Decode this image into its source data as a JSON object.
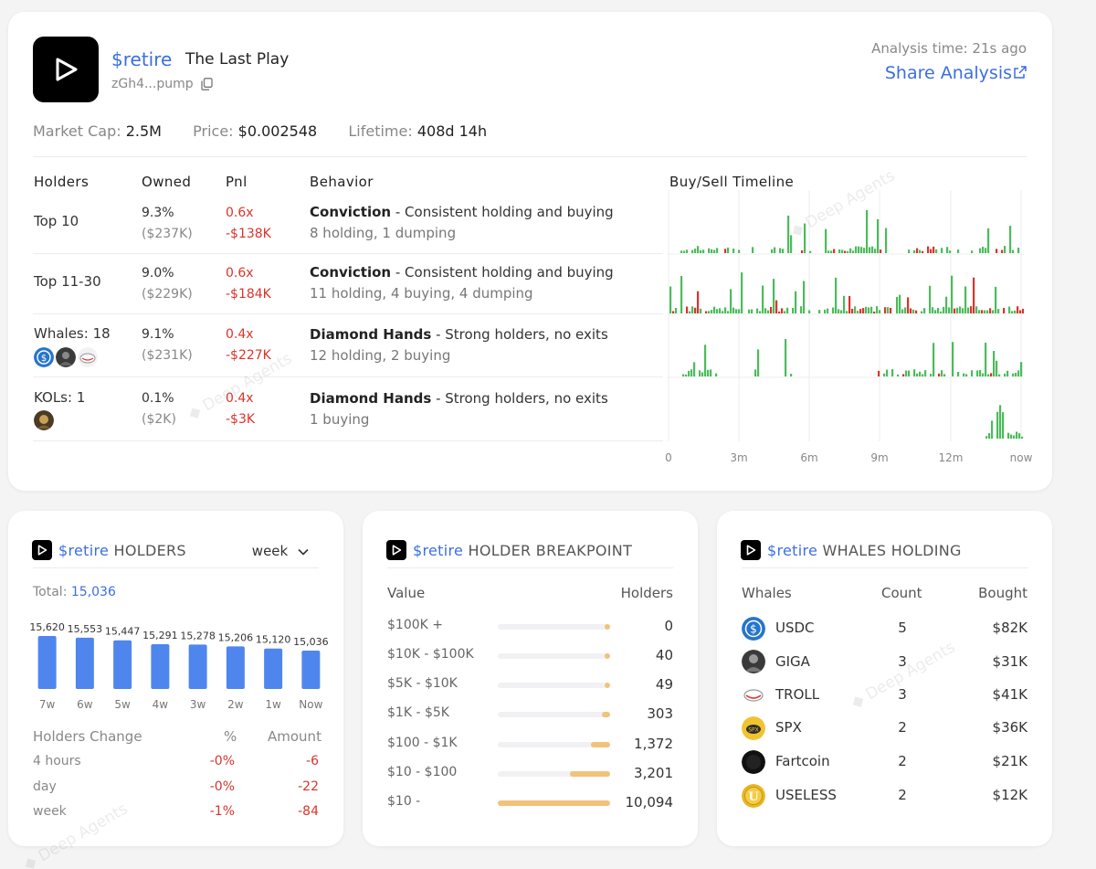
{
  "token": {
    "ticker": "$retire",
    "name": "The Last Play",
    "address": "zGh4...pump"
  },
  "header": {
    "analysis_time": "Analysis time: 21s ago",
    "share_label": "Share Analysis"
  },
  "stats": {
    "market_cap_label": "Market Cap:",
    "market_cap": "2.5M",
    "price_label": "Price:",
    "price": "$0.002548",
    "lifetime_label": "Lifetime:",
    "lifetime": "408d 14h"
  },
  "table": {
    "headers": {
      "holders": "Holders",
      "owned": "Owned",
      "pnl": "Pnl",
      "behavior": "Behavior",
      "timeline": "Buy/Sell Timeline"
    },
    "rows": [
      {
        "label": "Top 10",
        "owned_pct": "9.3%",
        "owned_usd": "($237K)",
        "pnl_x": "0.6x",
        "pnl_usd": "-$138K",
        "behavior_title": "Conviction",
        "behavior_desc": " - Consistent holding and buying",
        "behavior_detail": "8 holding, 1 dumping"
      },
      {
        "label": "Top 11-30",
        "owned_pct": "9.0%",
        "owned_usd": "($229K)",
        "pnl_x": "0.6x",
        "pnl_usd": "-$184K",
        "behavior_title": "Conviction",
        "behavior_desc": " - Consistent holding and buying",
        "behavior_detail": "11 holding, 4 buying, 4 dumping"
      },
      {
        "label": "Whales: 18",
        "owned_pct": "9.1%",
        "owned_usd": "($231K)",
        "pnl_x": "0.4x",
        "pnl_usd": "-$227K",
        "behavior_title": "Diamond Hands",
        "behavior_desc": " - Strong holders, no exits",
        "behavior_detail": "12 holding, 2 buying"
      },
      {
        "label": "KOLs: 1",
        "owned_pct": "0.1%",
        "owned_usd": "($2K)",
        "pnl_x": "0.4x",
        "pnl_usd": "-$3K",
        "behavior_title": "Diamond Hands",
        "behavior_desc": " - Strong holders, no exits",
        "behavior_detail": "1 buying"
      }
    ],
    "timeline_ticks": [
      "0",
      "3m",
      "6m",
      "9m",
      "12m",
      "now"
    ]
  },
  "watermark": "Deep Agents",
  "holders_card": {
    "title_ticker": "$retire",
    "title": "HOLDERS",
    "period": "week",
    "total_label": "Total:",
    "total": "15,036",
    "change_headers": {
      "label": "Holders Change",
      "pct": "%",
      "amount": "Amount"
    },
    "changes": [
      {
        "label": "4 hours",
        "pct": "-0%",
        "amount": "-6"
      },
      {
        "label": "day",
        "pct": "-0%",
        "amount": "-22"
      },
      {
        "label": "week",
        "pct": "-1%",
        "amount": "-84"
      }
    ]
  },
  "chart_data": {
    "type": "bar",
    "title": "$retire HOLDERS",
    "categories": [
      "7w",
      "6w",
      "5w",
      "4w",
      "3w",
      "2w",
      "1w",
      "Now"
    ],
    "values": [
      15620,
      15553,
      15447,
      15291,
      15278,
      15206,
      15120,
      15036
    ],
    "labels": [
      "15,620",
      "15,553",
      "15,447",
      "15,291",
      "15,278",
      "15,206",
      "15,120",
      "15,036"
    ],
    "xlabel": "",
    "ylabel": "",
    "bar_color": "#4f86ee"
  },
  "breakpoint_card": {
    "title_ticker": "$retire",
    "title": "HOLDER BREAKPOINT",
    "headers": {
      "value": "Value",
      "holders": "Holders"
    },
    "rows": [
      {
        "range": "$100K +",
        "holders": "0",
        "fraction": 0.05
      },
      {
        "range": "$10K - $100K",
        "holders": "40",
        "fraction": 0.05
      },
      {
        "range": "$5K - $10K",
        "holders": "49",
        "fraction": 0.05
      },
      {
        "range": "$1K - $5K",
        "holders": "303",
        "fraction": 0.07
      },
      {
        "range": "$100 - $1K",
        "holders": "1,372",
        "fraction": 0.17
      },
      {
        "range": "$10 - $100",
        "holders": "3,201",
        "fraction": 0.36
      },
      {
        "range": "$10 -",
        "holders": "10,094",
        "fraction": 1.0
      }
    ]
  },
  "whales_card": {
    "title_ticker": "$retire",
    "title": "WHALES HOLDING",
    "headers": {
      "whales": "Whales",
      "count": "Count",
      "bought": "Bought"
    },
    "rows": [
      {
        "name": "USDC",
        "count": "5",
        "bought": "$82K",
        "icon": "usdc-icon"
      },
      {
        "name": "GIGA",
        "count": "3",
        "bought": "$31K",
        "icon": "giga-icon"
      },
      {
        "name": "TROLL",
        "count": "3",
        "bought": "$41K",
        "icon": "troll-icon"
      },
      {
        "name": "SPX",
        "count": "2",
        "bought": "$36K",
        "icon": "spx-icon"
      },
      {
        "name": "Fartcoin",
        "count": "2",
        "bought": "$21K",
        "icon": "fartcoin-icon"
      },
      {
        "name": "USELESS",
        "count": "2",
        "bought": "$12K",
        "icon": "useless-icon"
      }
    ]
  },
  "colors": {
    "accent": "#3b6fe0",
    "buy": "#4cbb5c",
    "sell": "#d9342b",
    "breakpoint": "#f2c27a"
  }
}
